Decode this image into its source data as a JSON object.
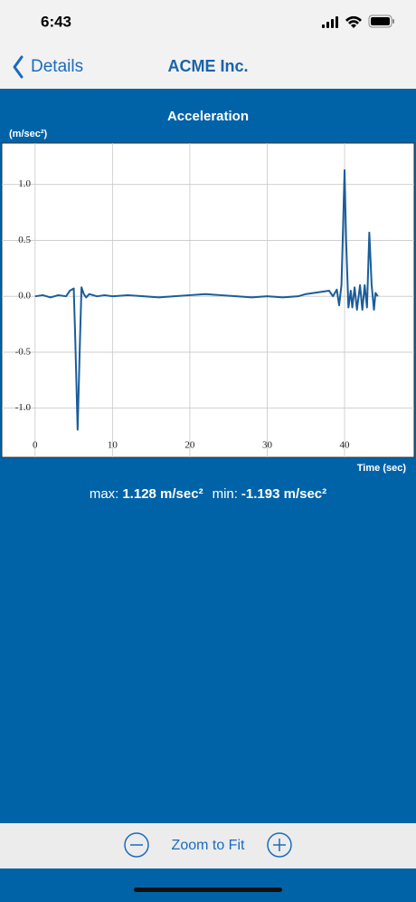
{
  "status_bar": {
    "time": "6:43"
  },
  "nav": {
    "back": "Details",
    "title": "ACME Inc."
  },
  "chart_data": {
    "type": "line",
    "title": "Acceleration",
    "y_label": "(m/sec²)",
    "x_label": "Time (sec)",
    "x": [
      0,
      1,
      2,
      3,
      4,
      4.5,
      5,
      5.2,
      5.5,
      5.8,
      6,
      6.3,
      6.6,
      7,
      8,
      9,
      10,
      12,
      14,
      16,
      18,
      20,
      22,
      24,
      26,
      28,
      30,
      32,
      34,
      35,
      36,
      37,
      38,
      38.5,
      39,
      39.3,
      39.6,
      39.8,
      40,
      40.2,
      40.5,
      40.8,
      41,
      41.3,
      41.6,
      42,
      42.3,
      42.6,
      42.9,
      43.2,
      43.5,
      43.8,
      44,
      44.3
    ],
    "series": [
      {
        "name": "Acceleration",
        "color": "#1a5d9a",
        "values": [
          0,
          0.01,
          -0.01,
          0.01,
          0,
          0.05,
          0.07,
          -0.4,
          -1.193,
          -0.4,
          0.08,
          0.02,
          -0.01,
          0.02,
          0,
          0.01,
          0,
          0.01,
          0,
          -0.01,
          0,
          0.01,
          0.02,
          0.01,
          0,
          -0.01,
          0,
          -0.01,
          0,
          0.02,
          0.03,
          0.04,
          0.05,
          0,
          0.06,
          -0.08,
          0.1,
          0.6,
          1.128,
          0.5,
          -0.1,
          0.05,
          -0.1,
          0.08,
          -0.12,
          0.1,
          -0.12,
          0.1,
          -0.1,
          0.57,
          0.1,
          -0.12,
          0.03,
          0
        ]
      }
    ],
    "xlim": [
      -4.3,
      49
    ],
    "ylim": [
      -1.44,
      1.37
    ],
    "xticks": [
      0,
      10,
      20,
      30,
      40
    ],
    "yticks": [
      {
        "value": 1,
        "label": "1.0"
      },
      0.5,
      {
        "value": 0,
        "label": "0.0"
      },
      -0.5,
      {
        "value": -1,
        "label": "-1.0"
      }
    ],
    "grid": true
  },
  "stats": {
    "max_label": "max:",
    "max_value": "1.128 m/sec²",
    "min_label": "min:",
    "min_value": "-1.193 m/sec²"
  },
  "toolbar": {
    "zoom": "Zoom to Fit"
  }
}
